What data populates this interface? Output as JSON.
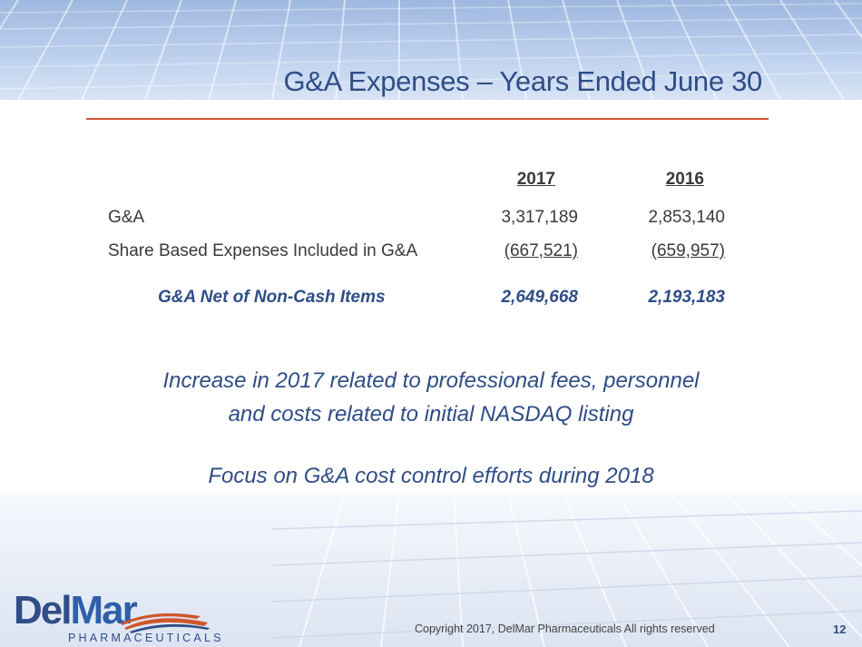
{
  "slide": {
    "title": "G&A Expenses – Years Ended June 30",
    "page_number": "12",
    "copyright": "Copyright 2017, DelMar Pharmaceuticals All rights reserved"
  },
  "table": {
    "columns": [
      "2017",
      "2016"
    ],
    "rows": [
      {
        "label": "G&A",
        "values": [
          "3,317,189",
          "2,853,140"
        ]
      },
      {
        "label": "Share Based Expenses Included in G&A",
        "values": [
          "(667,521)",
          "(659,957)"
        ]
      }
    ],
    "total": {
      "label": "G&A Net of Non-Cash Items",
      "values": [
        "2,649,668",
        "2,193,183"
      ]
    }
  },
  "notes": {
    "line1": "Increase in 2017 related to professional fees, personnel",
    "line2": "and costs related to initial NASDAQ listing",
    "line3": "Focus on G&A cost control efforts during 2018"
  },
  "logo": {
    "part1": "Del",
    "part2": "Mar",
    "subtitle": "PHARMACEUTICALS"
  },
  "colors": {
    "title": "#2f4d86",
    "rule": "#d0562b",
    "swoosh": "#d0562b"
  }
}
